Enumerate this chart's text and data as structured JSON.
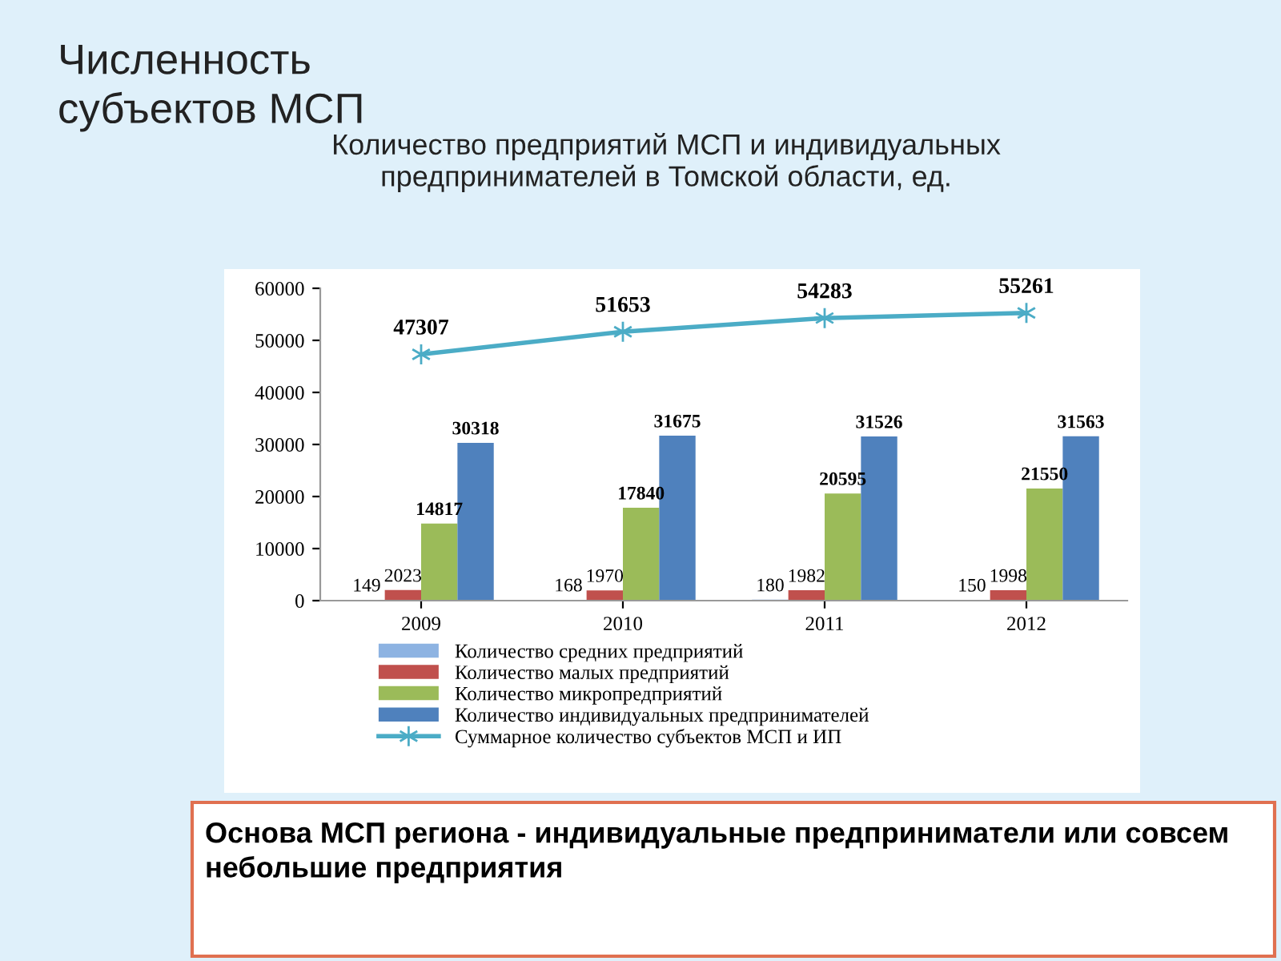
{
  "chart_data": {
    "type": "bar",
    "title": "Численность\nсубъектов МСП",
    "subtitle": "Количество предприятий МСП и индивидуальных\nпредпринимателей в Томской области, ед.",
    "categories": [
      "2009",
      "2010",
      "2011",
      "2012"
    ],
    "series": [
      {
        "name": "Количество средних предприятий",
        "color": "#8db3e2",
        "values": [
          149,
          168,
          180,
          150
        ]
      },
      {
        "name": "Количество малых предприятий",
        "color": "#c0504d",
        "values": [
          2023,
          1970,
          1982,
          1998
        ]
      },
      {
        "name": "Количество микропредприятий",
        "color": "#9bbb59",
        "values": [
          14817,
          17840,
          20595,
          21550
        ]
      },
      {
        "name": "Количество индивидуальных предпринимателей",
        "color": "#4f81bd",
        "values": [
          30318,
          31675,
          31526,
          31563
        ]
      },
      {
        "name": "Суммарное количество субъектов МСП и ИП",
        "color": "#4bacc6",
        "type": "line",
        "marker": "cross",
        "values": [
          47307,
          51653,
          54283,
          55261
        ]
      }
    ],
    "ylim": [
      0,
      60000
    ],
    "yticks": [
      0,
      10000,
      20000,
      30000,
      40000,
      50000,
      60000
    ],
    "data_labels": true,
    "grid": false,
    "legend": "bottom",
    "annotations": [
      "Основа МСП региона - индивидуальные предприниматели или совсем небольшие предприятия"
    ]
  }
}
